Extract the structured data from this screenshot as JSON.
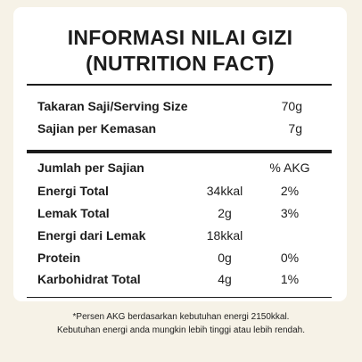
{
  "header": {
    "title_line1": "INFORMASI NILAI GIZI",
    "title_line2": "(NUTRITION FACT)"
  },
  "serving": [
    {
      "label": "Takaran Saji/Serving Size",
      "value": "70g"
    },
    {
      "label": "Sajian per Kemasan",
      "value": "7g"
    }
  ],
  "nutrients": {
    "header_label": "Jumlah per Sajian",
    "header_akg": "% AKG",
    "rows": [
      {
        "label": "Energi Total",
        "amount": "34kkal",
        "akg": "2%"
      },
      {
        "label": "Lemak Total",
        "amount": "2g",
        "akg": "3%"
      },
      {
        "label": "Energi dari Lemak",
        "amount": "18kkal",
        "akg": ""
      },
      {
        "label": "Protein",
        "amount": "0g",
        "akg": "0%"
      },
      {
        "label": "Karbohidrat Total",
        "amount": "4g",
        "akg": "1%"
      }
    ]
  },
  "footnote": {
    "line1": "*Persen AKG berdasarkan kebutuhan energi 2150kkal.",
    "line2": "Kebutuhan energi anda mungkin lebih tinggi atau lebih rendah."
  }
}
